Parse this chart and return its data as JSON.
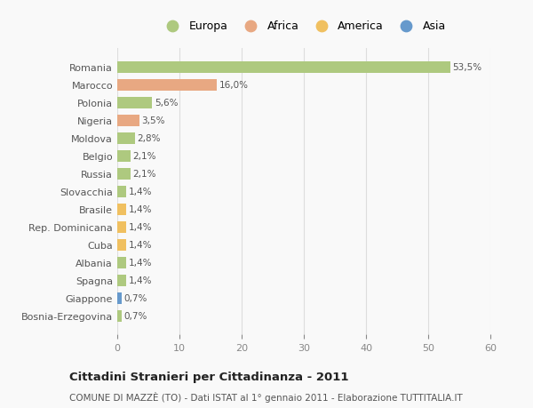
{
  "countries": [
    "Romania",
    "Marocco",
    "Polonia",
    "Nigeria",
    "Moldova",
    "Belgio",
    "Russia",
    "Slovacchia",
    "Brasile",
    "Rep. Dominicana",
    "Cuba",
    "Albania",
    "Spagna",
    "Giappone",
    "Bosnia-Erzegovina"
  ],
  "values": [
    53.5,
    16.0,
    5.6,
    3.5,
    2.8,
    2.1,
    2.1,
    1.4,
    1.4,
    1.4,
    1.4,
    1.4,
    1.4,
    0.7,
    0.7
  ],
  "labels": [
    "53,5%",
    "16,0%",
    "5,6%",
    "3,5%",
    "2,8%",
    "2,1%",
    "2,1%",
    "1,4%",
    "1,4%",
    "1,4%",
    "1,4%",
    "1,4%",
    "1,4%",
    "0,7%",
    "0,7%"
  ],
  "continents": [
    "Europa",
    "Africa",
    "Europa",
    "Africa",
    "Europa",
    "Europa",
    "Europa",
    "Europa",
    "America",
    "America",
    "America",
    "Europa",
    "Europa",
    "Asia",
    "Europa"
  ],
  "colors": {
    "Europa": "#aec97f",
    "Africa": "#e8a882",
    "America": "#f0c060",
    "Asia": "#6699cc"
  },
  "legend_order": [
    "Europa",
    "Africa",
    "America",
    "Asia"
  ],
  "title": "Cittadini Stranieri per Cittadinanza - 2011",
  "subtitle": "COMUNE DI MAZZÈ (TO) - Dati ISTAT al 1° gennaio 2011 - Elaborazione TUTTITALIA.IT",
  "xlim": [
    0,
    60
  ],
  "xticks": [
    0,
    10,
    20,
    30,
    40,
    50,
    60
  ],
  "background_color": "#f9f9f9",
  "grid_color": "#dddddd"
}
